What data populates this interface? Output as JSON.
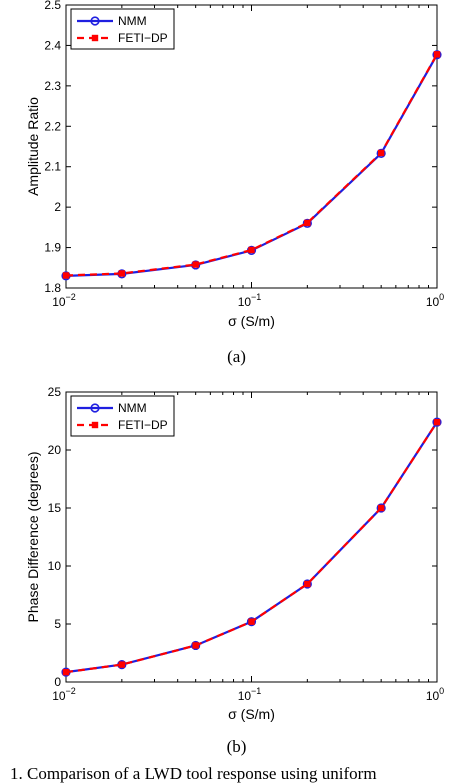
{
  "chart_data": [
    {
      "type": "line",
      "x_scale": "log",
      "xlim": [
        0.01,
        1
      ],
      "ylim": [
        1.8,
        2.5
      ],
      "xlabel": "σ (S/m)",
      "ylabel": "Amplitude Ratio",
      "xticks": [
        {
          "base": "10",
          "exp": "−2"
        },
        {
          "base": "10",
          "exp": "−1"
        },
        {
          "base": "10",
          "exp": "0"
        }
      ],
      "yticks": [
        "1.8",
        "1.9",
        "2",
        "2.1",
        "2.2",
        "2.3",
        "2.4",
        "2.5"
      ],
      "x": [
        0.01,
        0.02,
        0.05,
        0.1,
        0.2,
        0.5,
        1
      ],
      "series": [
        {
          "name": "NMM",
          "color": "#1f1fe0",
          "marker": "circle",
          "style": "solid",
          "values": [
            1.83,
            1.835,
            1.857,
            1.893,
            1.96,
            2.133,
            2.377
          ]
        },
        {
          "name": "FETI−DP",
          "color": "#ff0000",
          "marker": "square",
          "style": "dashed",
          "values": [
            1.831,
            1.836,
            1.858,
            1.894,
            1.961,
            2.134,
            2.378
          ]
        }
      ],
      "legend_position": "top-left",
      "caption": "(a)"
    },
    {
      "type": "line",
      "x_scale": "log",
      "xlim": [
        0.01,
        1
      ],
      "ylim": [
        0,
        25
      ],
      "xlabel": "σ (S/m)",
      "ylabel": "Phase Difference (degrees)",
      "xticks": [
        {
          "base": "10",
          "exp": "−2"
        },
        {
          "base": "10",
          "exp": "−1"
        },
        {
          "base": "10",
          "exp": "0"
        }
      ],
      "yticks": [
        "0",
        "5",
        "10",
        "15",
        "20",
        "25"
      ],
      "x": [
        0.01,
        0.02,
        0.05,
        0.1,
        0.2,
        0.5,
        1
      ],
      "series": [
        {
          "name": "NMM",
          "color": "#1f1fe0",
          "marker": "circle",
          "style": "solid",
          "values": [
            0.85,
            1.5,
            3.15,
            5.2,
            8.45,
            15.0,
            22.4
          ]
        },
        {
          "name": "FETI−DP",
          "color": "#ff0000",
          "marker": "square",
          "style": "dashed",
          "values": [
            0.85,
            1.5,
            3.15,
            5.2,
            8.45,
            15.0,
            22.4
          ]
        }
      ],
      "legend_position": "top-left",
      "caption": "(b)"
    }
  ],
  "footer_text": "1. Comparison of a LWD tool response using uniform"
}
